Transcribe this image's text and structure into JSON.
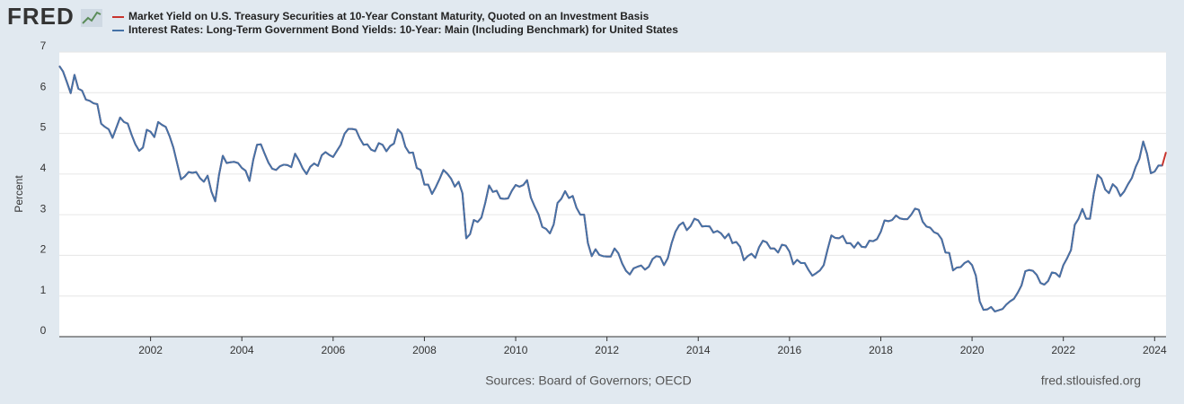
{
  "logo": "FRED",
  "source": "Sources: Board of Governors; OECD",
  "site": "fred.stlouisfed.org",
  "chart_data": {
    "type": "line",
    "y_label": "Percent",
    "xlim": [
      2000,
      2024.25
    ],
    "xticks": [
      2002,
      2004,
      2006,
      2008,
      2010,
      2012,
      2014,
      2016,
      2018,
      2020,
      2022,
      2024
    ],
    "ylim": [
      0,
      7
    ],
    "yticks": [
      0,
      1,
      2,
      3,
      4,
      5,
      6,
      7
    ],
    "grid": true,
    "x": [
      2000,
      2000.083,
      2000.167,
      2000.25,
      2000.333,
      2000.417,
      2000.5,
      2000.583,
      2000.667,
      2000.75,
      2000.833,
      2000.917,
      2001,
      2001.083,
      2001.167,
      2001.25,
      2001.333,
      2001.417,
      2001.5,
      2001.583,
      2001.667,
      2001.75,
      2001.833,
      2001.917,
      2002,
      2002.083,
      2002.167,
      2002.25,
      2002.333,
      2002.417,
      2002.5,
      2002.583,
      2002.667,
      2002.75,
      2002.833,
      2002.917,
      2003,
      2003.083,
      2003.167,
      2003.25,
      2003.333,
      2003.417,
      2003.5,
      2003.583,
      2003.667,
      2003.75,
      2003.833,
      2003.917,
      2004,
      2004.083,
      2004.167,
      2004.25,
      2004.333,
      2004.417,
      2004.5,
      2004.583,
      2004.667,
      2004.75,
      2004.833,
      2004.917,
      2005,
      2005.083,
      2005.167,
      2005.25,
      2005.333,
      2005.417,
      2005.5,
      2005.583,
      2005.667,
      2005.75,
      2005.833,
      2005.917,
      2006,
      2006.083,
      2006.167,
      2006.25,
      2006.333,
      2006.417,
      2006.5,
      2006.583,
      2006.667,
      2006.75,
      2006.833,
      2006.917,
      2007,
      2007.083,
      2007.167,
      2007.25,
      2007.333,
      2007.417,
      2007.5,
      2007.583,
      2007.667,
      2007.75,
      2007.833,
      2007.917,
      2008,
      2008.083,
      2008.167,
      2008.25,
      2008.333,
      2008.417,
      2008.5,
      2008.583,
      2008.667,
      2008.75,
      2008.833,
      2008.917,
      2009,
      2009.083,
      2009.167,
      2009.25,
      2009.333,
      2009.417,
      2009.5,
      2009.583,
      2009.667,
      2009.75,
      2009.833,
      2009.917,
      2010,
      2010.083,
      2010.167,
      2010.25,
      2010.333,
      2010.417,
      2010.5,
      2010.583,
      2010.667,
      2010.75,
      2010.833,
      2010.917,
      2011,
      2011.083,
      2011.167,
      2011.25,
      2011.333,
      2011.417,
      2011.5,
      2011.583,
      2011.667,
      2011.75,
      2011.833,
      2011.917,
      2012,
      2012.083,
      2012.167,
      2012.25,
      2012.333,
      2012.417,
      2012.5,
      2012.583,
      2012.667,
      2012.75,
      2012.833,
      2012.917,
      2013,
      2013.083,
      2013.167,
      2013.25,
      2013.333,
      2013.417,
      2013.5,
      2013.583,
      2013.667,
      2013.75,
      2013.833,
      2013.917,
      2014,
      2014.083,
      2014.167,
      2014.25,
      2014.333,
      2014.417,
      2014.5,
      2014.583,
      2014.667,
      2014.75,
      2014.833,
      2014.917,
      2015,
      2015.083,
      2015.167,
      2015.25,
      2015.333,
      2015.417,
      2015.5,
      2015.583,
      2015.667,
      2015.75,
      2015.833,
      2015.917,
      2016,
      2016.083,
      2016.167,
      2016.25,
      2016.333,
      2016.417,
      2016.5,
      2016.583,
      2016.667,
      2016.75,
      2016.833,
      2016.917,
      2017,
      2017.083,
      2017.167,
      2017.25,
      2017.333,
      2017.417,
      2017.5,
      2017.583,
      2017.667,
      2017.75,
      2017.833,
      2017.917,
      2018,
      2018.083,
      2018.167,
      2018.25,
      2018.333,
      2018.417,
      2018.5,
      2018.583,
      2018.667,
      2018.75,
      2018.833,
      2018.917,
      2019,
      2019.083,
      2019.167,
      2019.25,
      2019.333,
      2019.417,
      2019.5,
      2019.583,
      2019.667,
      2019.75,
      2019.833,
      2019.917,
      2020,
      2020.083,
      2020.167,
      2020.25,
      2020.333,
      2020.417,
      2020.5,
      2020.583,
      2020.667,
      2020.75,
      2020.833,
      2020.917,
      2021,
      2021.083,
      2021.167,
      2021.25,
      2021.333,
      2021.417,
      2021.5,
      2021.583,
      2021.667,
      2021.75,
      2021.833,
      2021.917,
      2022,
      2022.083,
      2022.167,
      2022.25,
      2022.333,
      2022.417,
      2022.5,
      2022.583,
      2022.667,
      2022.75,
      2022.833,
      2022.917,
      2023,
      2023.083,
      2023.167,
      2023.25,
      2023.333,
      2023.417,
      2023.5,
      2023.583,
      2023.667,
      2023.75,
      2023.833,
      2023.917,
      2024,
      2024.083,
      2024.167,
      2024.25
    ],
    "series": [
      {
        "name": "Market Yield on U.S. Treasury Securities at 10-Year Constant Maturity, Quoted on an Investment Basis",
        "color": "#c8342d",
        "values": [
          6.66,
          6.52,
          6.26,
          5.99,
          6.44,
          6.1,
          6.05,
          5.83,
          5.8,
          5.74,
          5.72,
          5.24,
          5.16,
          5.1,
          4.89,
          5.14,
          5.39,
          5.28,
          5.24,
          4.97,
          4.73,
          4.57,
          4.65,
          5.09,
          5.04,
          4.91,
          5.28,
          5.21,
          5.16,
          4.93,
          4.65,
          4.26,
          3.87,
          3.94,
          4.05,
          4.03,
          4.05,
          3.9,
          3.81,
          3.96,
          3.57,
          3.33,
          3.98,
          4.45,
          4.27,
          4.29,
          4.3,
          4.27,
          4.15,
          4.08,
          3.83,
          4.35,
          4.72,
          4.73,
          4.5,
          4.28,
          4.13,
          4.1,
          4.19,
          4.23,
          4.22,
          4.17,
          4.5,
          4.34,
          4.14,
          4.0,
          4.18,
          4.26,
          4.2,
          4.46,
          4.54,
          4.47,
          4.42,
          4.57,
          4.72,
          4.99,
          5.11,
          5.11,
          5.09,
          4.88,
          4.72,
          4.73,
          4.6,
          4.56,
          4.76,
          4.72,
          4.56,
          4.69,
          4.75,
          5.1,
          5.0,
          4.67,
          4.52,
          4.53,
          4.15,
          4.1,
          3.74,
          3.74,
          3.51,
          3.68,
          3.88,
          4.1,
          4.01,
          3.89,
          3.69,
          3.81,
          3.53,
          2.42,
          2.52,
          2.87,
          2.82,
          2.93,
          3.29,
          3.72,
          3.56,
          3.59,
          3.4,
          3.39,
          3.4,
          3.59,
          3.73,
          3.69,
          3.73,
          3.85,
          3.42,
          3.2,
          3.01,
          2.7,
          2.65,
          2.54,
          2.76,
          3.29,
          3.39,
          3.58,
          3.41,
          3.46,
          3.17,
          3.0,
          3.0,
          2.3,
          1.98,
          2.15,
          2.01,
          1.98,
          1.97,
          1.97,
          2.17,
          2.05,
          1.8,
          1.62,
          1.53,
          1.68,
          1.72,
          1.75,
          1.65,
          1.72,
          1.91,
          1.98,
          1.96,
          1.76,
          1.93,
          2.3,
          2.58,
          2.74,
          2.81,
          2.62,
          2.72,
          2.9,
          2.86,
          2.71,
          2.72,
          2.71,
          2.56,
          2.6,
          2.54,
          2.42,
          2.53,
          2.3,
          2.33,
          2.21,
          1.88,
          1.98,
          2.04,
          1.94,
          2.2,
          2.36,
          2.32,
          2.17,
          2.17,
          2.07,
          2.26,
          2.24,
          2.09,
          1.78,
          1.89,
          1.81,
          1.81,
          1.64,
          1.5,
          1.56,
          1.63,
          1.76,
          2.14,
          2.49,
          2.43,
          2.42,
          2.48,
          2.3,
          2.3,
          2.19,
          2.32,
          2.21,
          2.2,
          2.36,
          2.35,
          2.4,
          2.58,
          2.86,
          2.84,
          2.87,
          2.98,
          2.91,
          2.89,
          2.89,
          3.0,
          3.15,
          3.12,
          2.83,
          2.71,
          2.68,
          2.57,
          2.53,
          2.4,
          2.07,
          2.06,
          1.63,
          1.7,
          1.71,
          1.81,
          1.86,
          1.76,
          1.5,
          0.87,
          0.66,
          0.67,
          0.73,
          0.62,
          0.65,
          0.68,
          0.79,
          0.87,
          0.93,
          1.08,
          1.26,
          1.61,
          1.64,
          1.62,
          1.52,
          1.32,
          1.28,
          1.37,
          1.58,
          1.56,
          1.47,
          1.76,
          1.93,
          2.13,
          2.75,
          2.9,
          3.14,
          2.9,
          2.9,
          3.52,
          3.98,
          3.89,
          3.62,
          3.53,
          3.75,
          3.66,
          3.46,
          3.57,
          3.75,
          3.9,
          4.17,
          4.38,
          4.8,
          4.5,
          4.02,
          4.06,
          4.21,
          4.21,
          4.54
        ]
      },
      {
        "name": "Interest Rates: Long-Term Government Bond Yields: 10-Year: Main (Including Benchmark) for United States",
        "color": "#4572a7",
        "values": [
          6.66,
          6.52,
          6.26,
          5.99,
          6.44,
          6.1,
          6.05,
          5.83,
          5.8,
          5.74,
          5.72,
          5.24,
          5.16,
          5.1,
          4.89,
          5.14,
          5.39,
          5.28,
          5.24,
          4.97,
          4.73,
          4.57,
          4.65,
          5.09,
          5.04,
          4.91,
          5.28,
          5.21,
          5.16,
          4.93,
          4.65,
          4.26,
          3.87,
          3.94,
          4.05,
          4.03,
          4.05,
          3.9,
          3.81,
          3.96,
          3.57,
          3.33,
          3.98,
          4.45,
          4.27,
          4.29,
          4.3,
          4.27,
          4.15,
          4.08,
          3.83,
          4.35,
          4.72,
          4.73,
          4.5,
          4.28,
          4.13,
          4.1,
          4.19,
          4.23,
          4.22,
          4.17,
          4.5,
          4.34,
          4.14,
          4.0,
          4.18,
          4.26,
          4.2,
          4.46,
          4.54,
          4.47,
          4.42,
          4.57,
          4.72,
          4.99,
          5.11,
          5.11,
          5.09,
          4.88,
          4.72,
          4.73,
          4.6,
          4.56,
          4.76,
          4.72,
          4.56,
          4.69,
          4.75,
          5.1,
          5.0,
          4.67,
          4.52,
          4.53,
          4.15,
          4.1,
          3.74,
          3.74,
          3.51,
          3.68,
          3.88,
          4.1,
          4.01,
          3.89,
          3.69,
          3.81,
          3.53,
          2.42,
          2.52,
          2.87,
          2.82,
          2.93,
          3.29,
          3.72,
          3.56,
          3.59,
          3.4,
          3.39,
          3.4,
          3.59,
          3.73,
          3.69,
          3.73,
          3.85,
          3.42,
          3.2,
          3.01,
          2.7,
          2.65,
          2.54,
          2.76,
          3.29,
          3.39,
          3.58,
          3.41,
          3.46,
          3.17,
          3.0,
          3.0,
          2.3,
          1.98,
          2.15,
          2.01,
          1.98,
          1.97,
          1.97,
          2.17,
          2.05,
          1.8,
          1.62,
          1.53,
          1.68,
          1.72,
          1.75,
          1.65,
          1.72,
          1.91,
          1.98,
          1.96,
          1.76,
          1.93,
          2.3,
          2.58,
          2.74,
          2.81,
          2.62,
          2.72,
          2.9,
          2.86,
          2.71,
          2.72,
          2.71,
          2.56,
          2.6,
          2.54,
          2.42,
          2.53,
          2.3,
          2.33,
          2.21,
          1.88,
          1.98,
          2.04,
          1.94,
          2.2,
          2.36,
          2.32,
          2.17,
          2.17,
          2.07,
          2.26,
          2.24,
          2.09,
          1.78,
          1.89,
          1.81,
          1.81,
          1.64,
          1.5,
          1.56,
          1.63,
          1.76,
          2.14,
          2.49,
          2.43,
          2.42,
          2.48,
          2.3,
          2.3,
          2.19,
          2.32,
          2.21,
          2.2,
          2.36,
          2.35,
          2.4,
          2.58,
          2.86,
          2.84,
          2.87,
          2.98,
          2.91,
          2.89,
          2.89,
          3.0,
          3.15,
          3.12,
          2.83,
          2.71,
          2.68,
          2.57,
          2.53,
          2.4,
          2.07,
          2.06,
          1.63,
          1.7,
          1.71,
          1.81,
          1.86,
          1.76,
          1.5,
          0.87,
          0.66,
          0.67,
          0.73,
          0.62,
          0.65,
          0.68,
          0.79,
          0.87,
          0.93,
          1.08,
          1.26,
          1.61,
          1.64,
          1.62,
          1.52,
          1.32,
          1.28,
          1.37,
          1.58,
          1.56,
          1.47,
          1.76,
          1.93,
          2.13,
          2.75,
          2.9,
          3.14,
          2.9,
          2.9,
          3.52,
          3.98,
          3.89,
          3.62,
          3.53,
          3.75,
          3.66,
          3.46,
          3.57,
          3.75,
          3.9,
          4.17,
          4.38,
          4.8,
          4.5,
          4.02,
          4.06,
          4.21,
          4.21,
          null
        ]
      }
    ]
  }
}
